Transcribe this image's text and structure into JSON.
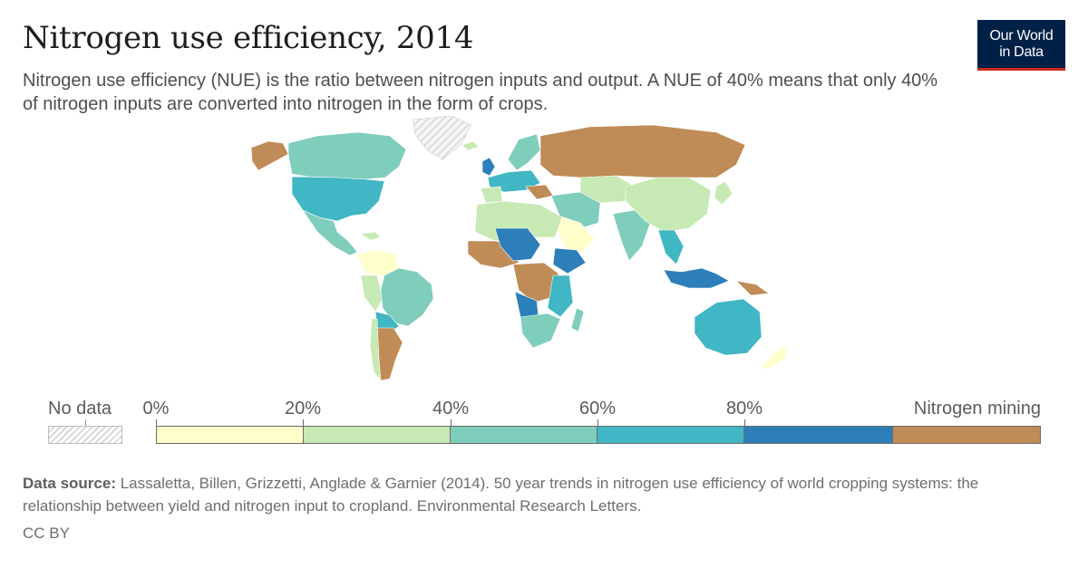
{
  "header": {
    "title": "Nitrogen use efficiency, 2014",
    "subtitle": "Nitrogen use efficiency (NUE) is the ratio between nitrogen inputs and output. A NUE of 40% means that only 40% of nitrogen inputs are converted into nitrogen in the form of crops."
  },
  "logo": {
    "line1": "Our World",
    "line2": "in Data"
  },
  "legend": {
    "no_data_label": "No data",
    "ticks": [
      "0%",
      "20%",
      "40%",
      "60%",
      "80%"
    ],
    "last_label": "Nitrogen mining",
    "colors": [
      "#ffffcc",
      "#c7e9b4",
      "#7fcdbb",
      "#41b6c4",
      "#2c7fb8",
      "#bf8b57"
    ]
  },
  "map_colors": {
    "c0": "#ffffcc",
    "c1": "#c7e9b4",
    "c2": "#7fcdbb",
    "c3": "#41b6c4",
    "c4": "#2c7fb8",
    "mining": "#bf8b57",
    "nodata": "#e6e6e6"
  },
  "footer": {
    "source_label": "Data source:",
    "source_text": "Lassaletta, Billen, Grizzetti, Anglade & Garnier (2014). 50 year trends in nitrogen use efficiency of world cropping systems: the relationship between yield and nitrogen input to cropland. Environmental Research Letters.",
    "license": "CC BY"
  }
}
